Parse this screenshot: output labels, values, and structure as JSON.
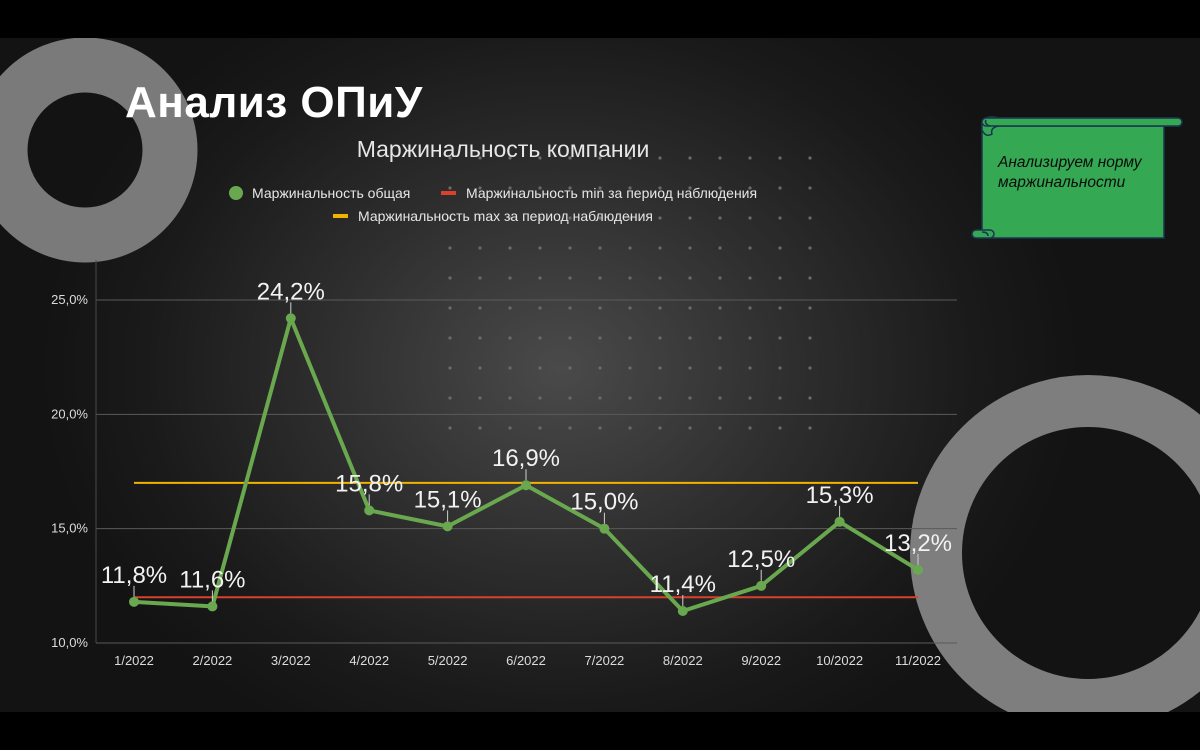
{
  "slide": {
    "heading": "Анализ ОПиУ",
    "note": "Анализируем норму маржинальности"
  },
  "colors": {
    "series_general": "#6aa84f",
    "series_min": "#d9412c",
    "series_max": "#f1b300",
    "note_fill": "#34a853"
  },
  "chart_data": {
    "type": "line",
    "title": "Маржинальность компании",
    "categories": [
      "1/2022",
      "2/2022",
      "3/2022",
      "4/2022",
      "5/2022",
      "6/2022",
      "7/2022",
      "8/2022",
      "9/2022",
      "10/2022",
      "11/2022"
    ],
    "series": [
      {
        "name": "Маржинальность общая",
        "values": [
          11.8,
          11.6,
          24.2,
          15.8,
          15.1,
          16.9,
          15.0,
          11.4,
          12.5,
          15.3,
          13.2
        ],
        "labels": [
          "11,8%",
          "11,6%",
          "24,2%",
          "15,8%",
          "15,1%",
          "16,9%",
          "15,0%",
          "11,4%",
          "12,5%",
          "15,3%",
          "13,2%"
        ]
      },
      {
        "name": "Маржинальность min за период наблюдения",
        "value": 12.0
      },
      {
        "name": "Маржинальность max за период наблюдения",
        "value": 17.0
      }
    ],
    "yticks": [
      "10,0%",
      "15,0%",
      "20,0%",
      "25,0%"
    ],
    "ylim": [
      10,
      25
    ],
    "grid": true,
    "legend": "top"
  }
}
